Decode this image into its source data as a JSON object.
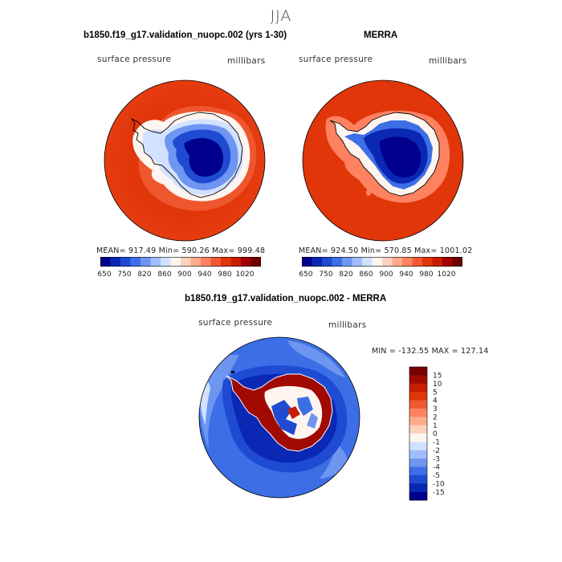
{
  "figure": {
    "season": "JJA"
  },
  "panels": {
    "model": {
      "title": "b1850.f19_g17.validation_nuopc.002 (yrs 1-30)",
      "variable": "surface pressure",
      "units": "millibars",
      "stats": "MEAN= 917.49   Min= 590.26   Max= 999.48"
    },
    "obs": {
      "title": "MERRA",
      "variable": "surface pressure",
      "units": "millibars",
      "stats": "MEAN= 924.50   Min= 570.85   Max= 1001.02"
    },
    "diff": {
      "title": "b1850.f19_g17.validation_nuopc.002 - MERRA",
      "variable": "surface pressure",
      "units": "millibars",
      "stats": "MIN = -132.55  MAX = 127.14"
    }
  },
  "colorbar_abs": {
    "tick_labels": [
      "650",
      "750",
      "820",
      "860",
      "900",
      "940",
      "980",
      "1020"
    ],
    "colors": [
      "#00008c",
      "#0a28b4",
      "#1e4bd2",
      "#3c6ee6",
      "#6e96f0",
      "#a0beff",
      "#d2e1ff",
      "#fff5f0",
      "#ffd2be",
      "#ffaa8c",
      "#ff8260",
      "#f05a32",
      "#e1350a",
      "#c81e00",
      "#a00000",
      "#6e0000"
    ]
  },
  "colorbar_diff": {
    "tick_labels": [
      "15",
      "10",
      "5",
      "4",
      "3",
      "2",
      "1",
      "0",
      "-1",
      "-2",
      "-3",
      "-4",
      "-5",
      "-10",
      "-15"
    ],
    "colors": [
      "#780000",
      "#a00a00",
      "#c81e00",
      "#e1350a",
      "#f05a32",
      "#ff8260",
      "#ffaa8c",
      "#ffd2be",
      "#fff5f0",
      "#d2e1ff",
      "#a0beff",
      "#6e96f0",
      "#3c6ee6",
      "#1e4bd2",
      "#0a28b4",
      "#00008c"
    ]
  },
  "colors": {
    "ocean_high": "#e1350a",
    "ocean_mid": "#f05a32",
    "ice_low": "#00008c",
    "diff_ocean": "#3c6ee6"
  }
}
